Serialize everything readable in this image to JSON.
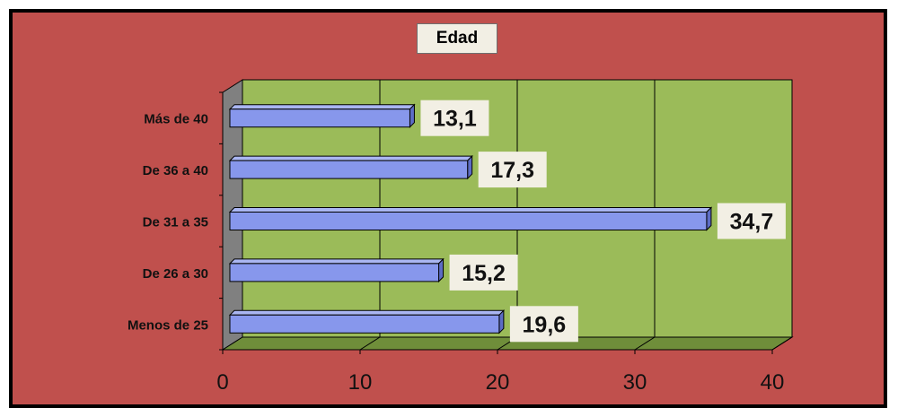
{
  "chart_data": {
    "type": "bar",
    "orientation": "horizontal",
    "title": "Edad",
    "categories": [
      "Menos de 25",
      "De 26 a 30",
      "De 31 a 35",
      "De 36 a 40",
      "Más de 40"
    ],
    "values": [
      19.6,
      15.2,
      34.7,
      17.3,
      13.1
    ],
    "value_labels": [
      "19,6",
      "15,2",
      "34,7",
      "17,3",
      "13,1"
    ],
    "xlim": [
      0,
      40
    ],
    "x_ticks": [
      0,
      10,
      20,
      30,
      40
    ],
    "grid": true,
    "three_d": true,
    "colors": {
      "frame_background": "#c0504d",
      "plot_background": "#9bbb59",
      "bar_fill": "#8797ec",
      "left_wall": "#808080",
      "floor": "#6f8e3a",
      "label_box": "#f2efe4"
    }
  }
}
